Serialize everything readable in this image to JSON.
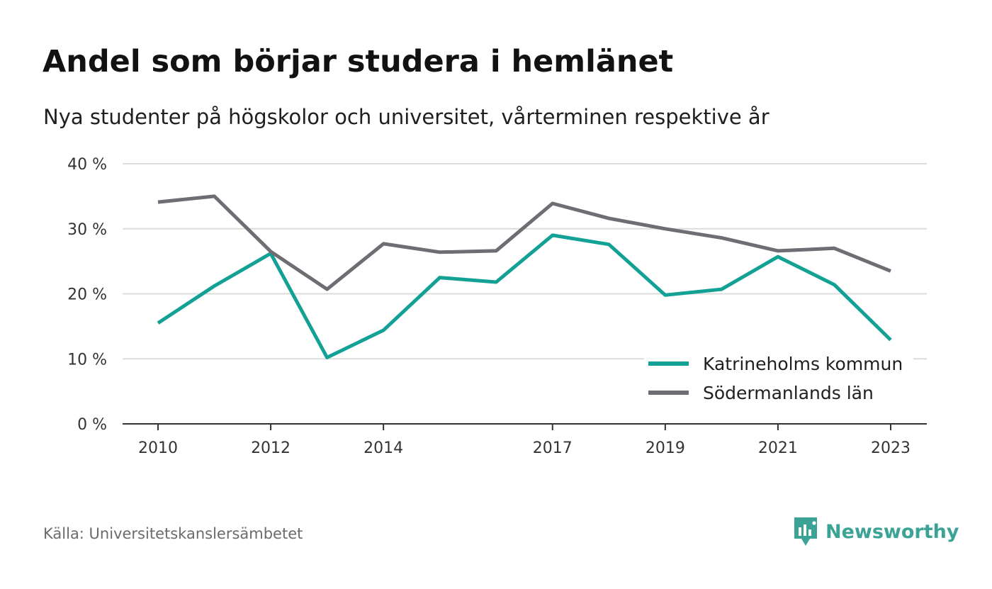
{
  "header": {
    "title": "Andel som börjar studera i hemlänet",
    "subtitle": "Nya studenter på högskolor och universitet, vårterminen respektive år"
  },
  "footer": {
    "source": "Källa: Universitetskanslersämbetet",
    "brand": "Newsworthy"
  },
  "colors": {
    "katrineholm": "#13a196",
    "sodermanland": "#6e6d74",
    "grid": "#dcdcdc",
    "axis": "#333333",
    "brand": "#3aa396"
  },
  "chart_data": {
    "type": "line",
    "title": "Andel som börjar studera i hemlänet",
    "subtitle": "Nya studenter på högskolor och universitet, vårterminen respektive år",
    "x": [
      2010,
      2011,
      2012,
      2013,
      2014,
      2015,
      2016,
      2017,
      2018,
      2019,
      2020,
      2021,
      2022,
      2023
    ],
    "x_tick_labels": [
      "2010",
      "2012",
      "2014",
      "2017",
      "2019",
      "2021",
      "2023"
    ],
    "x_ticks": [
      2010,
      2012,
      2014,
      2017,
      2019,
      2021,
      2023
    ],
    "y_tick_labels": [
      "0 %",
      "10 %",
      "20 %",
      "30 %",
      "40 %"
    ],
    "y_ticks": [
      0,
      10,
      20,
      30,
      40
    ],
    "ylim": [
      0,
      40
    ],
    "xlim": [
      2010,
      2023
    ],
    "grid": true,
    "legend_position": "bottom-right",
    "series": [
      {
        "name": "Katrineholms kommun",
        "color": "#13a196",
        "values": [
          15.5,
          21.2,
          26.2,
          10.2,
          14.4,
          22.5,
          21.8,
          29.0,
          27.6,
          19.8,
          20.7,
          25.7,
          21.4,
          12.9
        ]
      },
      {
        "name": "Södermanlands län",
        "color": "#6e6d74",
        "values": [
          34.1,
          35.0,
          26.5,
          20.7,
          27.7,
          26.4,
          26.6,
          33.9,
          31.6,
          30.0,
          28.6,
          26.6,
          27.0,
          23.5
        ]
      }
    ]
  }
}
